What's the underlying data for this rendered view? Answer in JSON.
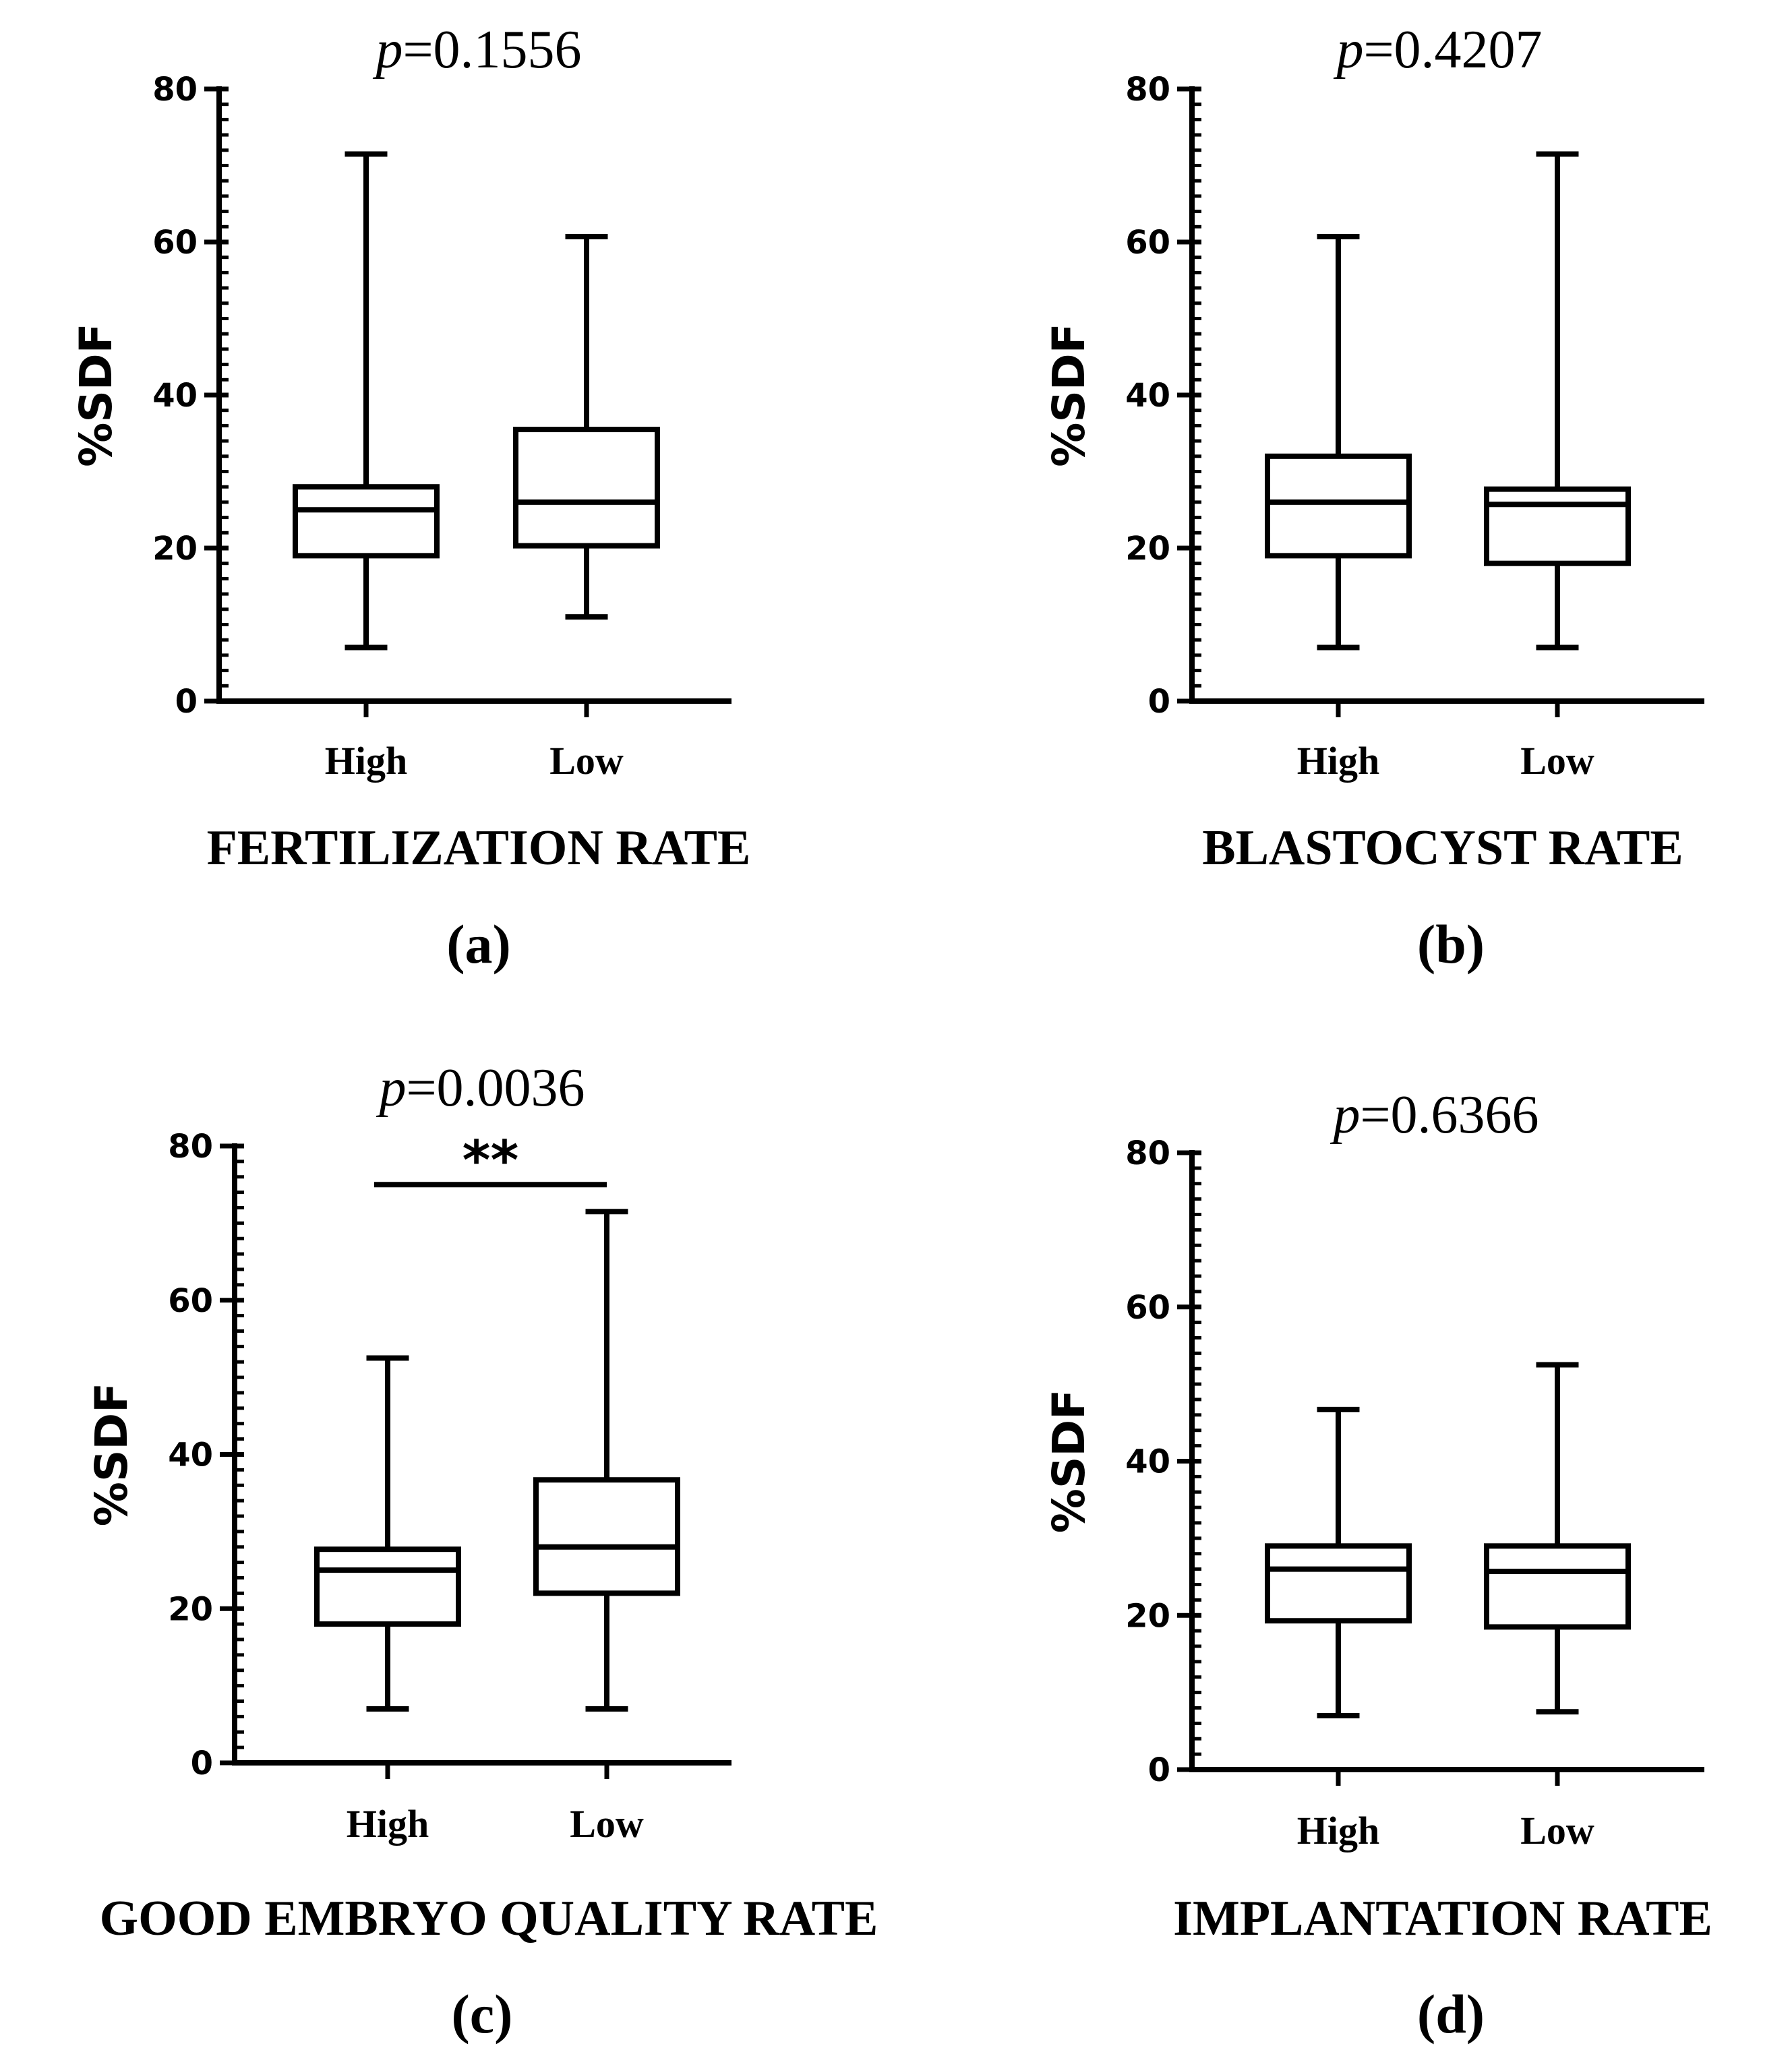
{
  "chart_data": [
    {
      "type": "box",
      "panel_label": "(a)",
      "title_prefix": "p",
      "title_value": "=0.1556",
      "xlabel": "FERTILIZATION RATE",
      "ylabel": "%SDF",
      "ylim": [
        0,
        80
      ],
      "yticks": [
        "0",
        "20",
        "40",
        "60",
        "80"
      ],
      "categories": [
        "High",
        "Low"
      ],
      "boxes": [
        {
          "category": "High",
          "min": 7,
          "q1": 19,
          "median": 25,
          "q3": 28,
          "max": 71.5
        },
        {
          "category": "Low",
          "min": 11,
          "q1": 20.3,
          "median": 26,
          "q3": 35.5,
          "max": 60.7
        }
      ],
      "significance": null
    },
    {
      "type": "box",
      "panel_label": "(b)",
      "title_prefix": "p",
      "title_value": "=0.4207",
      "xlabel": "BLASTOCYST RATE",
      "ylabel": "%SDF",
      "ylim": [
        0,
        80
      ],
      "yticks": [
        "0",
        "20",
        "40",
        "60",
        "80"
      ],
      "categories": [
        "High",
        "Low"
      ],
      "boxes": [
        {
          "category": "High",
          "min": 7,
          "q1": 19,
          "median": 26,
          "q3": 32,
          "max": 60.7
        },
        {
          "category": "Low",
          "min": 7,
          "q1": 18,
          "median": 25.7,
          "q3": 27.7,
          "max": 71.5
        }
      ],
      "significance": null
    },
    {
      "type": "box",
      "panel_label": "(c)",
      "title_prefix": "p",
      "title_value": "=0.0036",
      "xlabel": "GOOD EMBRYO QUALITY RATE",
      "ylabel": "%SDF",
      "ylim": [
        0,
        80
      ],
      "yticks": [
        "0",
        "20",
        "40",
        "60",
        "80"
      ],
      "categories": [
        "High",
        "Low"
      ],
      "boxes": [
        {
          "category": "High",
          "min": 7,
          "q1": 18,
          "median": 25,
          "q3": 27.7,
          "max": 52.5
        },
        {
          "category": "Low",
          "min": 7,
          "q1": 22,
          "median": 28,
          "q3": 36.7,
          "max": 71.5
        }
      ],
      "significance": {
        "label": "**",
        "y": 75
      }
    },
    {
      "type": "box",
      "panel_label": "(d)",
      "title_prefix": "p",
      "title_value": "=0.6366",
      "xlabel": "IMPLANTATION RATE",
      "ylabel": "%SDF",
      "ylim": [
        0,
        80
      ],
      "yticks": [
        "0",
        "20",
        "40",
        "60",
        "80"
      ],
      "categories": [
        "High",
        "Low"
      ],
      "boxes": [
        {
          "category": "High",
          "min": 7,
          "q1": 19.3,
          "median": 26,
          "q3": 29,
          "max": 46.7
        },
        {
          "category": "Low",
          "min": 7.5,
          "q1": 18.5,
          "median": 25.7,
          "q3": 29,
          "max": 52.5
        }
      ],
      "significance": null
    }
  ]
}
